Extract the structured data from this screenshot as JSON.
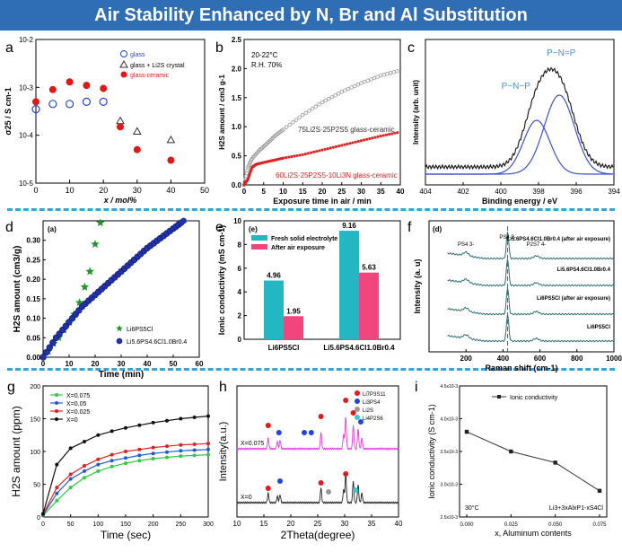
{
  "title": "Air Stability Enhanced by N, Br and Al Substitution",
  "chart_data": [
    {
      "panel": "a",
      "type": "scatter",
      "xlabel": "x / mol%",
      "ylabel": "σ25 / S cm-1",
      "xlim": [
        0,
        50
      ],
      "ylim_log": [
        -5,
        -2
      ],
      "xticks": [
        "0",
        "10",
        "20",
        "30",
        "40",
        "50"
      ],
      "yticks": [
        "10-5",
        "10-4",
        "10-3",
        "10-2"
      ],
      "legend": [
        "glass",
        "glass + Li2S crystal",
        "glass-ceramic"
      ],
      "series": [
        {
          "name": "glass",
          "marker": "open-circle",
          "x": [
            0,
            5,
            10,
            15,
            20
          ],
          "y": [
            0.00035,
            0.00045,
            0.00045,
            0.0005,
            0.0005
          ]
        },
        {
          "name": "glass + Li2S crystal",
          "marker": "open-triangle",
          "x": [
            25,
            30,
            40
          ],
          "y": [
            0.0002,
            0.00012,
            8e-05
          ]
        },
        {
          "name": "glass-ceramic",
          "marker": "filled-circle",
          "x": [
            0,
            5,
            10,
            15,
            20,
            25,
            30,
            40
          ],
          "y": [
            0.0005,
            0.0009,
            0.0013,
            0.0011,
            0.00095,
            0.00015,
            5e-05,
            3e-05
          ]
        }
      ]
    },
    {
      "panel": "b",
      "type": "line",
      "xlabel": "Exposure time in air / min",
      "ylabel": "H2S amount / cm3 g-1",
      "xlim": [
        0,
        40
      ],
      "ylim": [
        0,
        2.5
      ],
      "xticks": [
        "0",
        "5",
        "10",
        "15",
        "20",
        "25",
        "30",
        "35",
        "40"
      ],
      "yticks": [
        "0.0",
        "0.5",
        "1.0",
        "1.5",
        "2.0",
        "2.5"
      ],
      "annotation": [
        "20-22°C",
        "R.H. 70%"
      ],
      "series": [
        {
          "name": "75Li2S·25P2S5 glass-ceramic",
          "color": "#999999",
          "x": [
            0,
            1,
            2,
            4,
            6,
            8,
            10,
            15,
            20,
            25,
            30,
            35,
            40
          ],
          "y": [
            0,
            0.3,
            0.45,
            0.6,
            0.72,
            0.85,
            0.95,
            1.2,
            1.42,
            1.6,
            1.75,
            1.88,
            1.97
          ]
        },
        {
          "name": "60Li2S·25P2S5·10Li3N glass-ceramic",
          "color": "#e02020",
          "x": [
            0,
            1,
            2,
            3,
            4,
            6,
            8,
            10,
            15,
            20,
            25,
            30,
            35,
            40
          ],
          "y": [
            0,
            0.1,
            0.3,
            0.35,
            0.37,
            0.4,
            0.43,
            0.46,
            0.52,
            0.6,
            0.68,
            0.76,
            0.84,
            0.91
          ]
        }
      ]
    },
    {
      "panel": "c",
      "type": "line",
      "xlabel": "Binding energy / eV",
      "ylabel": "Intensity (arb. unit)",
      "xlim": [
        404,
        394
      ],
      "xticks": [
        "404",
        "402",
        "400",
        "398",
        "396",
        "394"
      ],
      "annotations": [
        "P−N=P",
        "P−N−P"
      ]
    },
    {
      "panel": "d",
      "type": "scatter",
      "xlabel": "Time (min)",
      "ylabel": "H2S amount (cm3/g)",
      "xlim": [
        0,
        60
      ],
      "ylim": [
        0,
        0.35
      ],
      "tag": "(a)",
      "xticks": [
        "0",
        "10",
        "20",
        "30",
        "40",
        "50",
        "60"
      ],
      "yticks": [
        "0.00",
        "0.05",
        "0.10",
        "0.15",
        "0.20",
        "0.25",
        "0.30"
      ],
      "series": [
        {
          "name": "Li6PS5Cl",
          "marker": "star",
          "x": [
            2,
            4,
            6,
            8,
            10,
            12,
            14,
            16,
            18,
            20,
            22
          ],
          "y": [
            0.015,
            0.035,
            0.05,
            0.07,
            0.09,
            0.11,
            0.14,
            0.18,
            0.22,
            0.29,
            0.345
          ]
        },
        {
          "name": "Li5.6PS4.6Cl1.0Br0.4",
          "marker": "filled-circle",
          "x": [
            0,
            5,
            10,
            15,
            20,
            25,
            30,
            35,
            40,
            45,
            50,
            54
          ],
          "y": [
            0,
            0.05,
            0.09,
            0.13,
            0.16,
            0.19,
            0.22,
            0.25,
            0.28,
            0.305,
            0.33,
            0.35
          ]
        }
      ]
    },
    {
      "panel": "e",
      "type": "bar",
      "ylabel": "Ionic conductivity (mS cm-1)",
      "ylim": [
        0,
        10
      ],
      "tag": "(e)",
      "yticks": [
        "0",
        "2",
        "4",
        "6",
        "8",
        "10"
      ],
      "categories": [
        "Li6PS5Cl",
        "Li5.6PS4.6Cl1.0Br0.4"
      ],
      "series": [
        {
          "name": "Fresh solid electrolyte",
          "values": [
            4.96,
            9.16
          ]
        },
        {
          "name": "After air exposure",
          "values": [
            1.95,
            5.63
          ]
        }
      ],
      "labels": [
        "4.96",
        "9.16",
        "1.95",
        "5.63"
      ]
    },
    {
      "panel": "f",
      "type": "line",
      "xlabel": "Raman shift (cm-1)",
      "ylabel": "Intensity (a. u)",
      "xlim": [
        0,
        1000
      ],
      "tag": "(d)",
      "xticks": [
        "200",
        "400",
        "600",
        "800",
        "1000"
      ],
      "peak_labels": [
        "PS4 3-",
        "PS4 3-",
        "P2S7 4-"
      ],
      "series": [
        "Li5.6PS4.6Cl1.0Br0.4 (after air exposure)",
        "Li5.6PS4.6Cl1.0Br0.4",
        "Li6PS5Cl (after air exposure)",
        "Li6PS5Cl"
      ]
    },
    {
      "panel": "g",
      "type": "line",
      "xlabel": "Time (sec)",
      "ylabel": "H2S amount (ppm)",
      "xlim": [
        0,
        300
      ],
      "ylim": [
        0,
        200
      ],
      "xticks": [
        "0",
        "50",
        "100",
        "150",
        "200",
        "250",
        "300"
      ],
      "yticks": [
        "0",
        "50",
        "100",
        "150",
        "200"
      ],
      "x": [
        0,
        25,
        50,
        75,
        100,
        125,
        150,
        175,
        200,
        225,
        250,
        275,
        300
      ],
      "series": [
        {
          "name": "X=0.075",
          "color": "#2ecc40",
          "values": [
            2,
            25,
            45,
            60,
            70,
            77,
            82,
            86,
            89,
            91,
            93,
            94,
            95
          ]
        },
        {
          "name": "X=0.05",
          "color": "#2058d6",
          "values": [
            3,
            36,
            58,
            70,
            80,
            86,
            90,
            94,
            97,
            99,
            101,
            102,
            103
          ]
        },
        {
          "name": "X=0.025",
          "color": "#e02020",
          "values": [
            4,
            45,
            65,
            78,
            88,
            95,
            100,
            103,
            106,
            108,
            110,
            111,
            112
          ]
        },
        {
          "name": "X=0",
          "color": "#111111",
          "values": [
            5,
            80,
            105,
            115,
            125,
            131,
            136,
            140,
            144,
            147,
            150,
            152,
            154
          ]
        }
      ]
    },
    {
      "panel": "h",
      "type": "line",
      "xlabel": "2Theta(degree)",
      "ylabel": "Intensity(a.u.)",
      "xlim": [
        10,
        40
      ],
      "xticks": [
        "10",
        "15",
        "20",
        "25",
        "30",
        "35",
        "40"
      ],
      "traces": [
        "X=0.075",
        "X=0"
      ],
      "legend": [
        "Li7P3S11",
        "Li3PS4",
        "Li2S",
        "Li4P2S6"
      ]
    },
    {
      "panel": "i",
      "type": "line",
      "xlabel": "x, Aluminum contents",
      "ylabel": "Ionic conductivity (S cm-1)",
      "xlim": [
        0,
        0.075
      ],
      "ylim": [
        0.0025,
        0.0045
      ],
      "xticks": [
        "0.000",
        "0.025",
        "0.050",
        "0.075"
      ],
      "yticks": [
        "2.5x10-3",
        "3.0x10-3",
        "3.5x10-3",
        "4.0x10-3",
        "4.5x10-3"
      ],
      "annotations": [
        "30°C",
        "Li3+3xAlxP1-xS4Cl"
      ],
      "series": [
        {
          "name": "Ionic conductivity",
          "x": [
            0,
            0.025,
            0.05,
            0.075
          ],
          "y": [
            0.0038,
            0.0035,
            0.00333,
            0.0029
          ]
        }
      ]
    }
  ]
}
